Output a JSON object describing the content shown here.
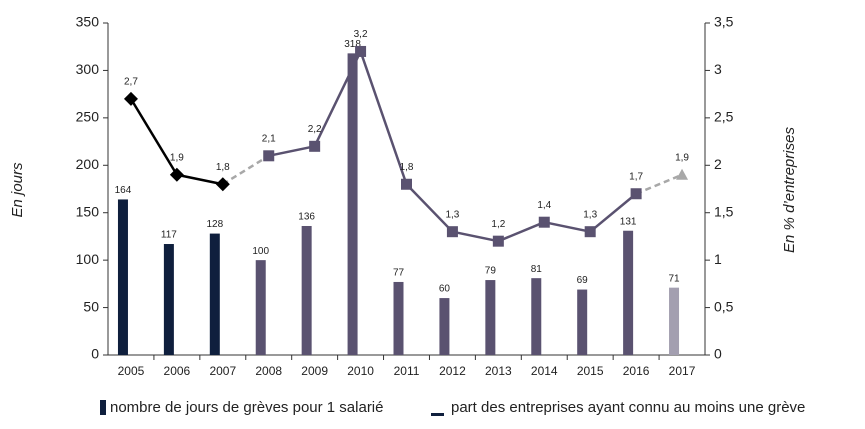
{
  "chart_data": {
    "type": "bar_line",
    "categories": [
      "2005",
      "2006",
      "2007",
      "2008",
      "2009",
      "2010",
      "2011",
      "2012",
      "2013",
      "2014",
      "2015",
      "2016",
      "2017"
    ],
    "ylabel": "En jours",
    "y2label": "En % d’entreprises",
    "ylim": [
      0,
      350
    ],
    "yticks": [
      0,
      50,
      100,
      150,
      200,
      250,
      300,
      350
    ],
    "y2lim": [
      0,
      3.5
    ],
    "y2ticks": [
      0,
      {
        "value": 0.5,
        "label": "0,5"
      },
      1,
      {
        "value": 1.5,
        "label": "1,5"
      },
      2,
      {
        "value": 2.5,
        "label": "2,5"
      },
      3,
      {
        "value": 3.5,
        "label": "3,5"
      }
    ],
    "series": [
      {
        "name": "nombre de jours de grèves pour 1 salarié",
        "type": "bar",
        "color": "#0f1f3d",
        "colors": [
          "#0f1f3d",
          "#0f1f3d",
          "#0f1f3d",
          "#5a5270",
          "#5a5270",
          "#5a5270",
          "#5a5270",
          "#5a5270",
          "#5a5270",
          "#5a5270",
          "#5a5270",
          "#5a5270",
          "#a39fb0"
        ],
        "values": [
          164,
          117,
          128,
          100,
          136,
          318,
          77,
          60,
          79,
          81,
          69,
          131,
          71
        ]
      },
      {
        "name": "part des entreprises ayant connu au moins une grève",
        "type": "line",
        "axis": "y2",
        "color": "#0f1f3d",
        "colors": [
          "#000000",
          "#000000",
          "#000000",
          "#5a5270",
          "#5a5270",
          "#5a5270",
          "#5a5270",
          "#5a5270",
          "#5a5270",
          "#5a5270",
          "#5a5270",
          "#5a5270",
          "#a8a8a8"
        ],
        "markers": [
          "diamond",
          "diamond",
          "diamond",
          "square",
          "square",
          "square",
          "square",
          "square",
          "square",
          "square",
          "square",
          "square",
          "triangle"
        ],
        "values": [
          2.7,
          1.9,
          1.8,
          2.1,
          2.2,
          3.2,
          1.8,
          1.3,
          1.2,
          1.4,
          1.3,
          1.7,
          1.9
        ],
        "value_labels": [
          "2,7",
          "1,9",
          "1,8",
          "2,1",
          "2,2",
          "3,2",
          "1,8",
          "1,3",
          "1,2",
          "1,4",
          "1,3",
          "1,7",
          "1,9"
        ]
      }
    ]
  }
}
